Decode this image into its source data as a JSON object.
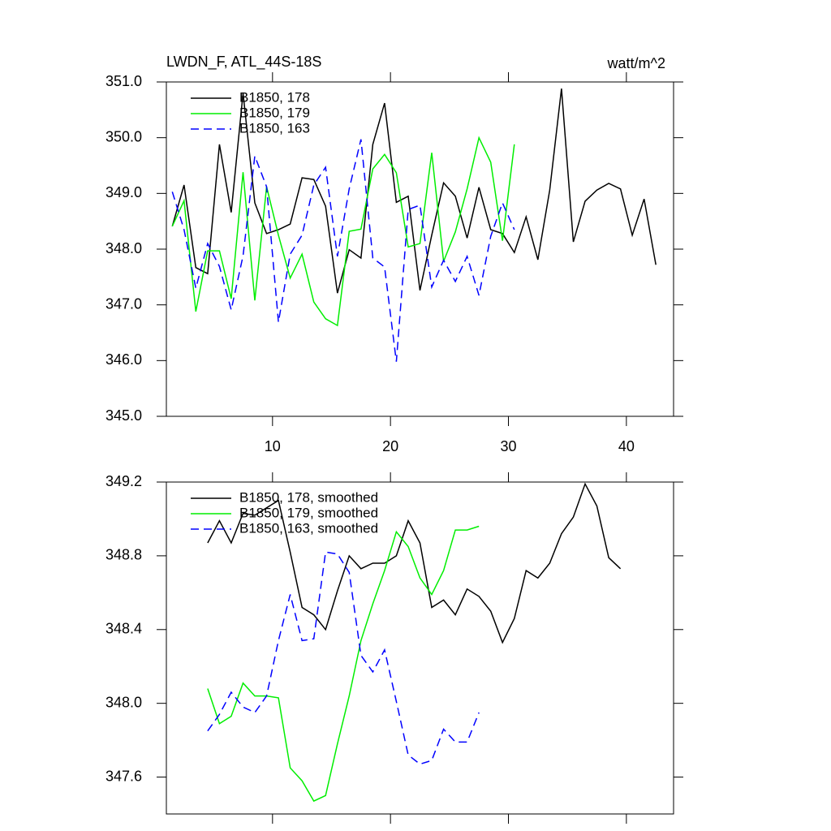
{
  "chart_data": [
    {
      "type": "line",
      "title": "LWDN_F, ATL_44S-18S",
      "units": "watt/m^2",
      "ylim": [
        345,
        351
      ],
      "yticks": [
        {
          "value": 345,
          "label": "345.0"
        },
        {
          "value": 346,
          "label": "346.0"
        },
        {
          "value": 347,
          "label": "347.0"
        },
        {
          "value": 348,
          "label": "348.0"
        },
        {
          "value": 349,
          "label": "349.0"
        },
        {
          "value": 350,
          "label": "350.0"
        },
        {
          "value": 351,
          "label": "351.0"
        }
      ],
      "xlim": [
        1,
        44
      ],
      "xticks": [
        10,
        20,
        30,
        40
      ],
      "show_xtick_labels": true,
      "legend": "top-left",
      "series": [
        {
          "name": "B1850, 178",
          "color": "#000000",
          "style": "solid",
          "x": [
            1.5,
            2.5,
            3.5,
            4.5,
            5.5,
            6.5,
            7.5,
            8.5,
            9.5,
            10.5,
            11.5,
            12.5,
            13.5,
            14.5,
            15.5,
            16.5,
            17.5,
            18.5,
            19.5,
            20.5,
            21.5,
            22.5,
            23.5,
            24.5,
            25.5,
            26.5,
            27.5,
            28.5,
            29.5,
            30.5,
            31.5,
            32.5,
            33.5,
            34.5,
            35.5,
            36.5,
            37.5,
            38.5,
            39.5,
            40.5,
            41.5,
            42.5
          ],
          "values": [
            348.41,
            349.15,
            347.67,
            347.56,
            349.88,
            348.66,
            350.8,
            348.83,
            348.28,
            348.35,
            348.45,
            349.28,
            349.25,
            348.77,
            347.21,
            347.99,
            347.84,
            349.88,
            350.62,
            348.84,
            348.95,
            347.26,
            348.25,
            349.19,
            348.95,
            348.2,
            349.11,
            348.35,
            348.28,
            347.94,
            348.58,
            347.81,
            349.06,
            350.88,
            348.13,
            348.86,
            349.06,
            349.18,
            349.08,
            348.25,
            348.9,
            347.72
          ]
        },
        {
          "name": "B1850, 179",
          "color": "#00ee00",
          "style": "solid",
          "x": [
            1.5,
            2.5,
            3.5,
            4.5,
            5.5,
            6.5,
            7.5,
            8.5,
            9.5,
            10.5,
            11.5,
            12.5,
            13.5,
            14.5,
            15.5,
            16.5,
            17.5,
            18.5,
            19.5,
            20.5,
            21.5,
            22.5,
            23.5,
            24.5,
            25.5,
            26.5,
            27.5,
            28.5,
            29.5,
            30.5
          ],
          "values": [
            348.41,
            348.87,
            346.88,
            347.97,
            347.97,
            347.11,
            349.38,
            347.08,
            349.12,
            348.25,
            347.48,
            347.91,
            347.05,
            346.75,
            346.63,
            348.32,
            348.36,
            349.44,
            349.7,
            349.37,
            348.04,
            348.1,
            349.73,
            347.78,
            348.31,
            349.08,
            350.0,
            349.56,
            348.15,
            349.88
          ]
        },
        {
          "name": "B1850, 163",
          "color": "#0000ff",
          "style": "dashed",
          "x": [
            1.5,
            2.5,
            3.5,
            4.5,
            5.5,
            6.5,
            7.5,
            8.5,
            9.5,
            10.5,
            11.5,
            12.5,
            13.5,
            14.5,
            15.5,
            16.5,
            17.5,
            18.5,
            19.5,
            20.5,
            21.5,
            22.5,
            23.5,
            24.5,
            25.5,
            26.5,
            27.5,
            28.5,
            29.5,
            30.5
          ],
          "values": [
            349.03,
            348.35,
            347.3,
            348.1,
            347.69,
            346.91,
            347.88,
            349.67,
            349.12,
            346.69,
            347.91,
            348.25,
            349.15,
            349.47,
            347.87,
            349.08,
            349.97,
            347.84,
            347.68,
            345.98,
            348.71,
            348.79,
            347.32,
            347.8,
            347.42,
            347.87,
            347.17,
            348.23,
            348.83,
            348.35
          ]
        }
      ]
    },
    {
      "type": "line",
      "ylim": [
        347.4,
        349.2
      ],
      "yticks": [
        347.6,
        {
          "value": 348,
          "label": "348.0"
        },
        348.4,
        348.8,
        349.2
      ],
      "xlim": [
        1,
        44
      ],
      "xticks": [
        10,
        20,
        30,
        40
      ],
      "show_xtick_labels": false,
      "legend": "top-left",
      "series": [
        {
          "name": "B1850, 178, smoothed",
          "color": "#000000",
          "style": "solid",
          "x": [
            4.5,
            5.5,
            6.5,
            7.5,
            8.5,
            9.5,
            10.5,
            11.5,
            12.5,
            13.5,
            14.5,
            15.5,
            16.5,
            17.5,
            18.5,
            19.5,
            20.5,
            21.5,
            22.5,
            23.5,
            24.5,
            25.5,
            26.5,
            27.5,
            28.5,
            29.5,
            30.5,
            31.5,
            32.5,
            33.5,
            34.5,
            35.5,
            36.5,
            37.5,
            38.5,
            39.5
          ],
          "values": [
            348.87,
            348.99,
            348.87,
            349.03,
            349.02,
            349.06,
            349.1,
            348.82,
            348.52,
            348.48,
            348.4,
            348.61,
            348.8,
            348.73,
            348.76,
            348.76,
            348.8,
            348.99,
            348.87,
            348.52,
            348.56,
            348.48,
            348.62,
            348.58,
            348.5,
            348.33,
            348.46,
            348.72,
            348.68,
            348.76,
            348.92,
            349.01,
            349.19,
            349.07,
            348.79,
            348.73
          ]
        },
        {
          "name": "B1850, 179, smoothed",
          "color": "#00ee00",
          "style": "solid",
          "x": [
            4.5,
            5.5,
            6.5,
            7.5,
            8.5,
            9.5,
            10.5,
            11.5,
            12.5,
            13.5,
            14.5,
            15.5,
            16.5,
            17.5,
            18.5,
            19.5,
            20.5,
            21.5,
            22.5,
            23.5,
            24.5,
            25.5,
            26.5,
            27.5
          ],
          "values": [
            348.08,
            347.89,
            347.93,
            348.11,
            348.04,
            348.04,
            348.03,
            347.65,
            347.58,
            347.47,
            347.5,
            347.78,
            348.04,
            348.34,
            348.54,
            348.72,
            348.93,
            348.85,
            348.68,
            348.59,
            348.72,
            348.94,
            348.94,
            348.96
          ]
        },
        {
          "name": "B1850, 163, smoothed",
          "color": "#0000ff",
          "style": "dashed",
          "x": [
            4.5,
            5.5,
            6.5,
            7.5,
            8.5,
            9.5,
            10.5,
            11.5,
            12.5,
            13.5,
            14.5,
            15.5,
            16.5,
            17.5,
            18.5,
            19.5,
            20.5,
            21.5,
            22.5,
            23.5,
            24.5,
            25.5,
            26.5,
            27.5
          ],
          "values": [
            347.85,
            347.94,
            348.06,
            347.98,
            347.95,
            348.04,
            348.34,
            348.59,
            348.34,
            348.35,
            348.82,
            348.81,
            348.71,
            348.26,
            348.17,
            348.29,
            348.01,
            347.72,
            347.67,
            347.69,
            347.86,
            347.79,
            347.79,
            347.95
          ]
        }
      ]
    }
  ]
}
